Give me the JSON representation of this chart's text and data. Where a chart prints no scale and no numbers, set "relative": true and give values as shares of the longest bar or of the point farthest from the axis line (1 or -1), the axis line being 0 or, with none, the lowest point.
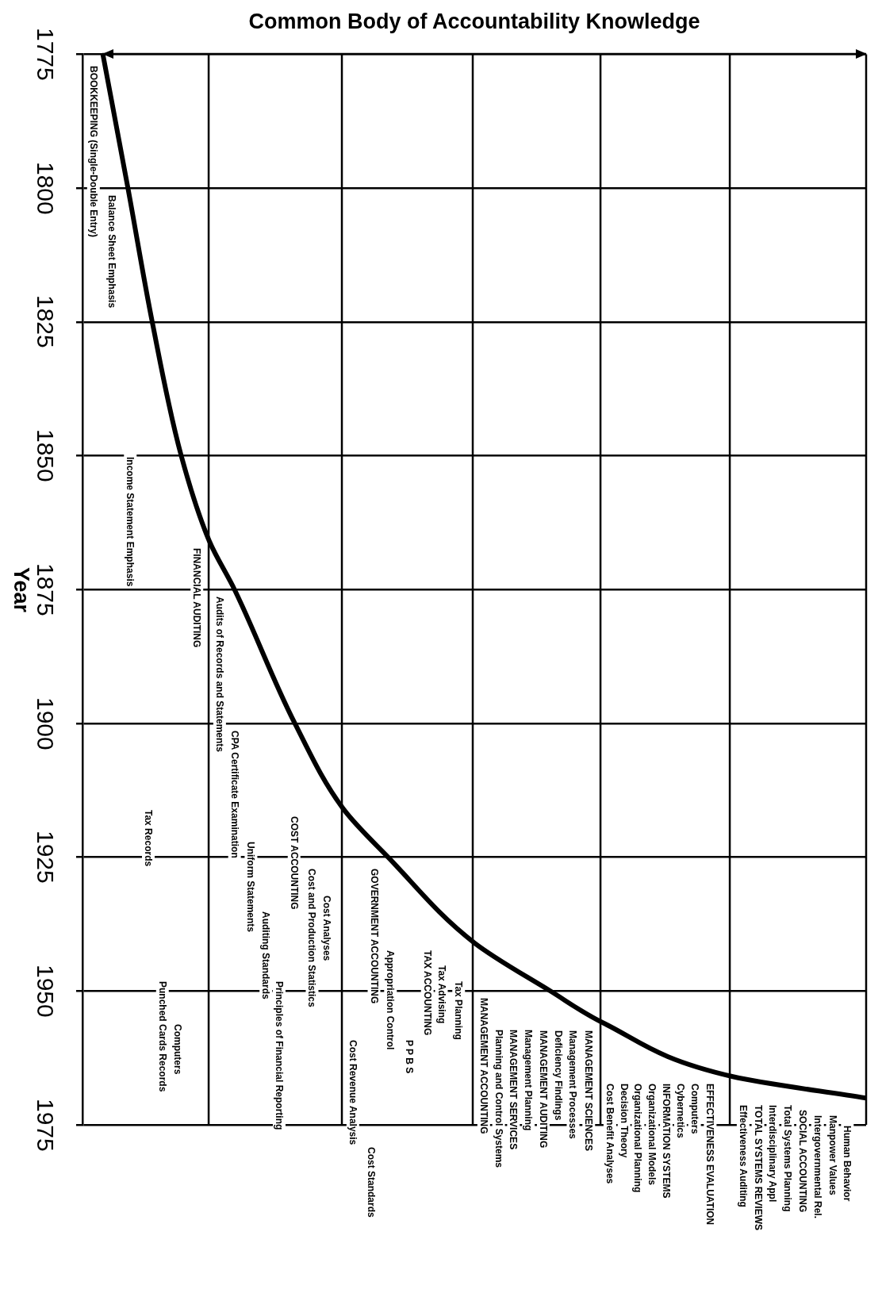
{
  "chart_data": {
    "type": "line",
    "orientation": "horizontal",
    "relative": true,
    "xlabel": "Common Body of Accountability Knowledge",
    "ylabel": "Year",
    "x": [
      1775,
      1800,
      1825,
      1850,
      1866,
      1875,
      1900,
      1916,
      1925,
      1941,
      1950,
      1956,
      1966,
      1970
    ],
    "values": [
      0.026,
      0.058,
      0.089,
      0.126,
      0.162,
      0.194,
      0.271,
      0.333,
      0.39,
      0.5,
      0.597,
      0.665,
      0.83,
      1
    ],
    "color": "#000000",
    "ylim": [
      1975,
      1775
    ],
    "yticks": [
      1775,
      1800,
      1825,
      1850,
      1875,
      1900,
      1925,
      1950,
      1975
    ],
    "grid": "y",
    "legend": false,
    "marker": "none",
    "ref_lines": [
      {
        "axis": "x",
        "value": 0.161
      },
      {
        "axis": "x",
        "value": 0.331
      },
      {
        "axis": "x",
        "value": 0.498
      },
      {
        "axis": "x",
        "value": 0.661
      },
      {
        "axis": "x",
        "value": 0.826
      }
    ],
    "annotations": [
      "BOOKKEEPING (Single-Double Entry)",
      "Balance Sheet Emphasis",
      "Income Statement Emphasis",
      "FINANCIAL AUDITING",
      "Audits of Records and Statements",
      "CPA Certificate Examination",
      "Tax Records",
      "Uniform Statements",
      "COST ACCOUNTING",
      "Cost and Production Statistics",
      "Auditing Standards",
      "Principles of Financial Reporting",
      "Cost Analyses",
      "Computers",
      "Punched Cards Records",
      "Cost Revenue Analysis",
      "Cost Standards",
      "GOVERNMENT ACCOUNTING",
      "Appropriation Control",
      "P P B S",
      "TAX ACCOUNTING",
      "Tax Advising",
      "Tax Planning",
      "MANAGEMENT ACCOUNTING",
      "Planning and Control Systems",
      "MANAGEMENT SERVICES",
      "Management Planning",
      "MANAGEMENT AUDITING",
      "Deficiency Findings",
      "Management Processes",
      "MANAGEMENT SCIENCES",
      "Cost Benefit Analyses",
      "Decision Theory",
      "Organizational Planning",
      "Organizational Models",
      "INFORMATION SYSTEMS",
      "Cybernetics",
      "Computers",
      "EFFECTIVENESS EVALUATION",
      "Effectiveness Auditing",
      "TOTAL SYSTEMS REVIEWS",
      "Interdisciplinary Appl",
      "Total Systems Planning",
      "SOCIAL ACCOUNTING",
      "Intergovernmental Rel.",
      "Manpower Values",
      "Human Behavior"
    ]
  }
}
